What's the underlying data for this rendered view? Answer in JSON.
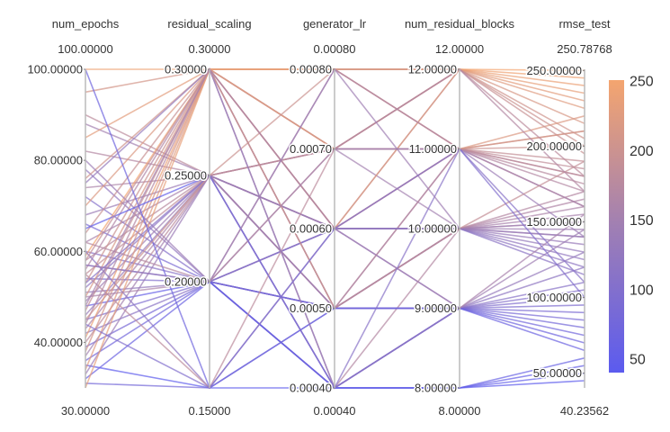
{
  "chart_data": {
    "type": "parallel_coordinates",
    "axes": [
      {
        "name": "num_epochs",
        "range_label_max": "100.00000",
        "range_label_min": "30.00000",
        "min": 30,
        "max": 100,
        "ticks": [
          {
            "value": 40,
            "label": "40.00000"
          },
          {
            "value": 60,
            "label": "60.00000"
          },
          {
            "value": 80,
            "label": "80.00000"
          },
          {
            "value": 100,
            "label": "100.00000"
          }
        ]
      },
      {
        "name": "residual_scaling",
        "range_label_max": "0.30000",
        "range_label_min": "0.15000",
        "min": 0.15,
        "max": 0.3,
        "ticks": [
          {
            "value": 0.2,
            "label": "0.20000"
          },
          {
            "value": 0.25,
            "label": "0.25000"
          },
          {
            "value": 0.3,
            "label": "0.30000"
          }
        ]
      },
      {
        "name": "generator_lr",
        "range_label_max": "0.00080",
        "range_label_min": "0.00040",
        "min": 0.0004,
        "max": 0.0008,
        "ticks": [
          {
            "value": 0.0004,
            "label": "0.00040"
          },
          {
            "value": 0.0005,
            "label": "0.00050"
          },
          {
            "value": 0.0006,
            "label": "0.00060"
          },
          {
            "value": 0.0007,
            "label": "0.00070"
          },
          {
            "value": 0.0008,
            "label": "0.00080"
          }
        ]
      },
      {
        "name": "num_residual_blocks",
        "range_label_max": "12.00000",
        "range_label_min": "8.00000",
        "min": 8,
        "max": 12,
        "ticks": [
          {
            "value": 8,
            "label": "8.00000"
          },
          {
            "value": 9,
            "label": "9.00000"
          },
          {
            "value": 10,
            "label": "10.00000"
          },
          {
            "value": 11,
            "label": "11.00000"
          },
          {
            "value": 12,
            "label": "12.00000"
          }
        ]
      },
      {
        "name": "rmse_test",
        "range_label_max": "250.78768",
        "range_label_min": "40.23562",
        "min": 40.23562,
        "max": 250.78768,
        "ticks": [
          {
            "value": 50,
            "label": "50.00000"
          },
          {
            "value": 100,
            "label": "100.00000"
          },
          {
            "value": 150,
            "label": "150.00000"
          },
          {
            "value": 200,
            "label": "200.00000"
          },
          {
            "value": 250,
            "label": "250.00000"
          }
        ]
      }
    ],
    "colorbar": {
      "metric": "rmse_test",
      "min": 40.23562,
      "max": 250.78768,
      "ticks": [
        {
          "value": 50,
          "label": "50"
        },
        {
          "value": 100,
          "label": "100"
        },
        {
          "value": 150,
          "label": "150"
        },
        {
          "value": 200,
          "label": "200"
        },
        {
          "value": 250,
          "label": "250"
        }
      ],
      "color_low": "#5b5bef",
      "color_mid": "#a07fb3",
      "color_high": "#f4a56f"
    },
    "rows": [
      [
        100,
        0.3,
        0.0008,
        12,
        245
      ],
      [
        95,
        0.3,
        0.0008,
        11,
        210
      ],
      [
        90,
        0.25,
        0.0007,
        11,
        180
      ],
      [
        88,
        0.25,
        0.0007,
        10,
        150
      ],
      [
        85,
        0.3,
        0.0007,
        12,
        230
      ],
      [
        82,
        0.25,
        0.0006,
        11,
        170
      ],
      [
        78,
        0.2,
        0.0006,
        10,
        125
      ],
      [
        76,
        0.3,
        0.0006,
        12,
        205
      ],
      [
        74,
        0.25,
        0.0005,
        10,
        160
      ],
      [
        72,
        0.2,
        0.0005,
        9,
        105
      ],
      [
        70,
        0.3,
        0.0008,
        11,
        220
      ],
      [
        68,
        0.25,
        0.0005,
        10,
        140
      ],
      [
        66,
        0.2,
        0.0004,
        9,
        90
      ],
      [
        64,
        0.3,
        0.0007,
        12,
        195
      ],
      [
        62,
        0.25,
        0.0006,
        10,
        155
      ],
      [
        60,
        0.2,
        0.0005,
        9,
        110
      ],
      [
        59,
        0.3,
        0.0008,
        12,
        250
      ],
      [
        58,
        0.25,
        0.0006,
        11,
        175
      ],
      [
        57,
        0.2,
        0.0004,
        8,
        60
      ],
      [
        56,
        0.3,
        0.0005,
        10,
        165
      ],
      [
        55,
        0.25,
        0.0007,
        11,
        185
      ],
      [
        54,
        0.2,
        0.0006,
        9,
        100
      ],
      [
        53,
        0.3,
        0.0005,
        11,
        200
      ],
      [
        52,
        0.25,
        0.0004,
        9,
        120
      ],
      [
        51,
        0.2,
        0.0005,
        10,
        130
      ],
      [
        50,
        0.3,
        0.0006,
        12,
        215
      ],
      [
        49,
        0.25,
        0.0005,
        9,
        145
      ],
      [
        48,
        0.2,
        0.0004,
        8,
        55
      ],
      [
        47,
        0.3,
        0.0007,
        11,
        190
      ],
      [
        46,
        0.25,
        0.0006,
        10,
        135
      ],
      [
        45,
        0.2,
        0.0005,
        9,
        95
      ],
      [
        44,
        0.3,
        0.0004,
        10,
        170
      ],
      [
        43,
        0.25,
        0.0005,
        11,
        160
      ],
      [
        42,
        0.2,
        0.0006,
        10,
        115
      ],
      [
        41,
        0.3,
        0.0008,
        12,
        240
      ],
      [
        40,
        0.25,
        0.0007,
        11,
        180
      ],
      [
        39,
        0.2,
        0.0004,
        9,
        85
      ],
      [
        38,
        0.3,
        0.0006,
        11,
        210
      ],
      [
        37,
        0.25,
        0.0005,
        10,
        150
      ],
      [
        36,
        0.2,
        0.0005,
        9,
        75
      ],
      [
        35,
        0.15,
        0.0004,
        8,
        45
      ],
      [
        34,
        0.3,
        0.0007,
        12,
        225
      ],
      [
        33,
        0.25,
        0.0006,
        10,
        140
      ],
      [
        32,
        0.2,
        0.0004,
        9,
        65
      ],
      [
        31,
        0.15,
        0.0005,
        9,
        80
      ],
      [
        30,
        0.3,
        0.0008,
        12,
        235
      ],
      [
        60,
        0.15,
        0.0006,
        10,
        120
      ],
      [
        80,
        0.2,
        0.0007,
        11,
        140
      ],
      [
        100,
        0.15,
        0.0005,
        9,
        70
      ],
      [
        65,
        0.25,
        0.0004,
        8,
        50
      ],
      [
        55,
        0.15,
        0.0007,
        12,
        180
      ],
      [
        45,
        0.25,
        0.0008,
        12,
        200
      ],
      [
        75,
        0.3,
        0.0004,
        9,
        130
      ],
      [
        50,
        0.2,
        0.0008,
        11,
        160
      ],
      [
        58,
        0.3,
        0.0005,
        10,
        190
      ],
      [
        62,
        0.2,
        0.0007,
        12,
        170
      ],
      [
        48,
        0.3,
        0.0006,
        9,
        155
      ],
      [
        53,
        0.25,
        0.0004,
        11,
        110
      ],
      [
        57,
        0.2,
        0.0008,
        10,
        145
      ],
      [
        44,
        0.15,
        0.0006,
        11,
        100
      ]
    ]
  }
}
